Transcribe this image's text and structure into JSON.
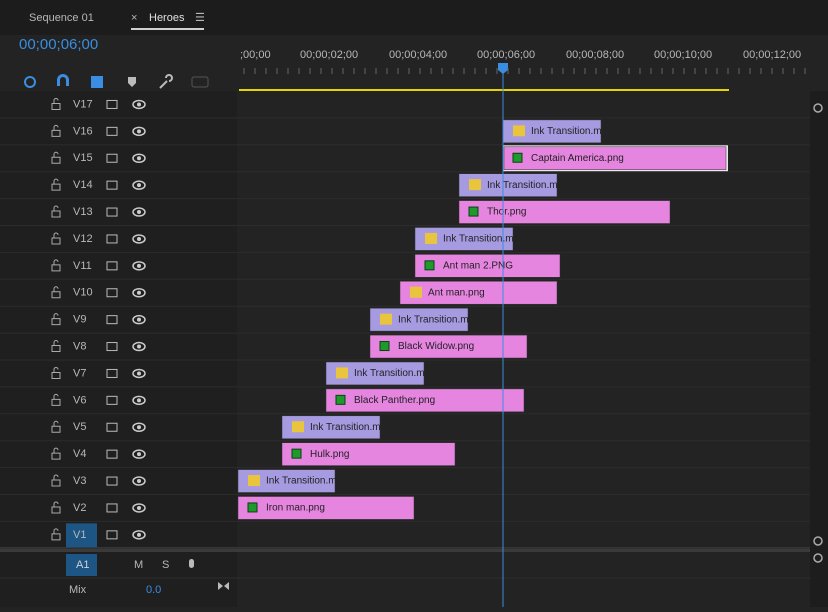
{
  "tabs": {
    "inactive": "Sequence 01",
    "close": "×",
    "active": "Heroes",
    "menu": "☰"
  },
  "timecode": "00;00;06;00",
  "ruler": [
    ";00;00",
    "00;00;02;00",
    "00;00;04;00",
    "00;00;06;00",
    "00;00;08;00",
    "00;00;10;00",
    "00;00;12;00"
  ],
  "tracks": [
    {
      "name": "V17"
    },
    {
      "name": "V16",
      "clip": "Ink Transition.m"
    },
    {
      "name": "V15",
      "clip": "Captain America.png"
    },
    {
      "name": "V14",
      "clip": "Ink Transition.m"
    },
    {
      "name": "V13",
      "clip": "Thor.png"
    },
    {
      "name": "V12",
      "clip": "Ink Transition.m"
    },
    {
      "name": "V11",
      "clip": "Ant man 2.PNG"
    },
    {
      "name": "V10",
      "clip": "Ant man.png"
    },
    {
      "name": "V9",
      "clip": "Ink Transition.m"
    },
    {
      "name": "V8",
      "clip": "Black Widow.png"
    },
    {
      "name": "V7",
      "clip": "Ink Transition.m"
    },
    {
      "name": "V6",
      "clip": "Black Panther.png"
    },
    {
      "name": "V5",
      "clip": "Ink Transition.m"
    },
    {
      "name": "V4",
      "clip": "Hulk.png"
    },
    {
      "name": "V3",
      "clip": "Ink Transition.m"
    },
    {
      "name": "V2",
      "clip": "Iron man.png"
    },
    {
      "name": "V1"
    }
  ],
  "audio": {
    "name": "A1",
    "mute": "M",
    "solo": "S"
  },
  "mix": {
    "label": "Mix",
    "value": "0.0"
  }
}
